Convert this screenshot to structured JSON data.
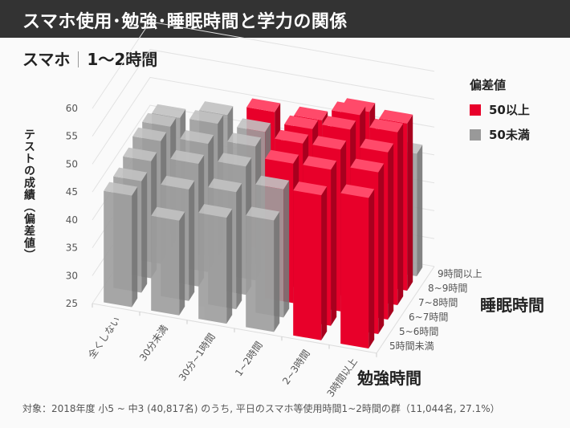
{
  "header": {
    "title": "スマホ使用･勉強･睡眠時間と学力の関係"
  },
  "subtitle": {
    "left": "スマホ",
    "right": "1～2時間"
  },
  "legend": {
    "title": "偏差値",
    "items": [
      {
        "label": "50以上",
        "color": "#e8002a"
      },
      {
        "label": "50未満",
        "color": "#999999"
      }
    ]
  },
  "footer": "対象：2018年度 小5 ~ 中3 (40,817名) のうち, 平日のスマホ等使用時間1~2時間の群（11,044名, 27.1%）",
  "chart_data": {
    "type": "bar",
    "subtype": "3d-bar",
    "title": "",
    "zlabel": "テストの成績（偏差値）",
    "xlabel": "勉強時間",
    "ylabel": "睡眠時間",
    "zlim": [
      25,
      60
    ],
    "zticks": [
      25,
      30,
      35,
      40,
      45,
      50,
      55,
      60
    ],
    "grid": true,
    "legend_position": "top-right",
    "threshold": 50,
    "x_categories": [
      "全くしない",
      "30分未満",
      "30分~1時間",
      "1~2時間",
      "2~3時間",
      "3時間以上"
    ],
    "y_categories": [
      "5時間未満",
      "5~6時間",
      "6~7時間",
      "7~8時間",
      "8~9時間",
      "9時間以上"
    ],
    "values": [
      [
        45,
        45,
        46,
        47,
        47,
        46
      ],
      [
        42,
        45,
        47,
        48,
        49,
        48
      ],
      [
        44,
        46,
        48,
        49,
        49,
        50
      ],
      [
        45,
        48,
        50,
        51,
        51,
        50
      ],
      [
        51,
        53,
        54,
        55,
        55,
        53
      ],
      [
        52,
        54,
        55,
        56,
        55,
        47
      ]
    ],
    "colors": {
      "above": "#e8002a",
      "below": "#999999"
    }
  }
}
